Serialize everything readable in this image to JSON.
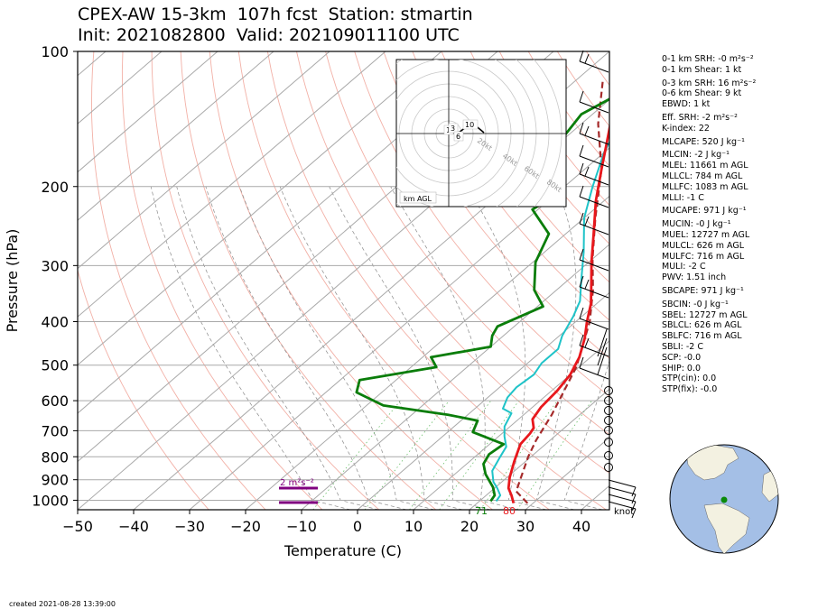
{
  "title_line1": "CPEX-AW 15-3km  107h fcst  Station: stmartin",
  "title_line2": "Init: 2021082800  Valid: 202109011100 UTC",
  "footer": "created 2021-08-28 13:39:00",
  "stats": [
    "0-1 km SRH: -0 m²s⁻²",
    "0-1 km Shear: 1 kt",
    "0-3 km SRH: 16 m²s⁻²",
    "0-6 km Shear: 9 kt",
    "EBWD: 1 kt",
    "Eff. SRH: -2 m²s⁻²",
    "K-index: 22",
    "MLCAPE: 520 J kg⁻¹",
    "MLCIN: -2 J kg⁻¹",
    "MLEL: 11661 m AGL",
    "MLLCL: 784 m AGL",
    "MLLFC: 1083 m AGL",
    "MLLI: -1 C",
    "MUCAPE: 971 J kg⁻¹",
    "MUCIN: -0 J kg⁻¹",
    "MUEL: 12727 m AGL",
    "MULCL: 626 m AGL",
    "MULFC: 716 m AGL",
    "MULI: -2 C",
    "PWV: 1.51 inch",
    "SBCAPE: 971 J kg⁻¹",
    "SBCIN: -0 J kg⁻¹",
    "SBEL: 12727 m AGL",
    "SBLCL: 626 m AGL",
    "SBLFC: 716 m AGL",
    "SBLI: -2 C",
    "SCP: -0.0",
    "SHIP: 0.0",
    "STP(cin): 0.0",
    "STP(fix): -0.0"
  ],
  "hodograph": {
    "box_label": "km AGL",
    "ring_labels": [
      "20kt",
      "40kt",
      "60kt",
      "80kt"
    ],
    "height_labels": [
      "1",
      "3",
      "6",
      "10"
    ]
  },
  "srh_label": "2 m²s⁻²",
  "surface_dewpoint_label": "71",
  "surface_temp_label": "80",
  "barb_units_label": "knot",
  "colors": {
    "temperature": "#e8171c",
    "dewpoint": "#0a7d0a",
    "wetbulb": "#1fc3c8",
    "parcel": "#a52a2a",
    "srh_bar": "#800080",
    "map_ocean": "#a4bfe6",
    "map_land": "#f3f1e1",
    "station_marker": "#0a8a0a"
  },
  "chart_data": {
    "type": "line",
    "title": "CPEX-AW 15-3km  107h fcst  Station: stmartin",
    "xlabel": "Temperature (C)",
    "ylabel": "Pressure (hPa)",
    "xlim": [
      -50,
      45
    ],
    "ylim": [
      1050,
      100
    ],
    "y_scale": "log",
    "x_ticks": [
      -50,
      -40,
      -30,
      -20,
      -10,
      0,
      10,
      20,
      30,
      40
    ],
    "y_ticks": [
      1000,
      900,
      800,
      700,
      600,
      500,
      400,
      300,
      200,
      100
    ],
    "grid": true,
    "series": [
      {
        "key": "temperature",
        "points": [
          [
            26.5,
            1015
          ],
          [
            24.5,
            975
          ],
          [
            22.5,
            940
          ],
          [
            20.5,
            890
          ],
          [
            18,
            820
          ],
          [
            15.5,
            750
          ],
          [
            15,
            710
          ],
          [
            14.5,
            690
          ],
          [
            12.5,
            660
          ],
          [
            11.5,
            620
          ],
          [
            11,
            570
          ],
          [
            10,
            525
          ],
          [
            8,
            480
          ],
          [
            5,
            435
          ],
          [
            2,
            400
          ],
          [
            -1,
            365
          ],
          [
            -5,
            330
          ],
          [
            -9.5,
            295
          ],
          [
            -15,
            255
          ],
          [
            -21.5,
            215
          ],
          [
            -27,
            183
          ],
          [
            -31.5,
            160
          ],
          [
            -36,
            140
          ],
          [
            -40.5,
            122
          ]
        ]
      },
      {
        "key": "dewpoint",
        "points": [
          [
            22,
            1005
          ],
          [
            21.5,
            975
          ],
          [
            19.5,
            935
          ],
          [
            15.5,
            875
          ],
          [
            13,
            830
          ],
          [
            12,
            790
          ],
          [
            12.5,
            750
          ],
          [
            4.5,
            705
          ],
          [
            3,
            665
          ],
          [
            -3.5,
            645
          ],
          [
            -17,
            615
          ],
          [
            -24.5,
            575
          ],
          [
            -26.5,
            540
          ],
          [
            -15.5,
            505
          ],
          [
            -18.5,
            480
          ],
          [
            -10,
            455
          ],
          [
            -12,
            430
          ],
          [
            -13,
            410
          ],
          [
            -9,
            370
          ],
          [
            -14,
            340
          ],
          [
            -19.5,
            295
          ],
          [
            -23,
            255
          ],
          [
            -31,
            225
          ],
          [
            -29.5,
            205
          ],
          [
            -35.5,
            180
          ],
          [
            -40.5,
            155
          ],
          [
            -42,
            138
          ],
          [
            -39,
            122
          ],
          [
            -36,
            108
          ],
          [
            -35,
            100
          ]
        ]
      },
      {
        "key": "wetbulb",
        "points": [
          [
            23,
            1005
          ],
          [
            22.5,
            975
          ],
          [
            20.5,
            940
          ],
          [
            18.5,
            910
          ],
          [
            16,
            860
          ],
          [
            14.5,
            800
          ],
          [
            13.5,
            760
          ],
          [
            11,
            720
          ],
          [
            9,
            685
          ],
          [
            7.5,
            640
          ],
          [
            5,
            625
          ],
          [
            3.5,
            590
          ],
          [
            3,
            560
          ],
          [
            3.5,
            525
          ],
          [
            2.5,
            495
          ],
          [
            2.5,
            460
          ],
          [
            0.5,
            430
          ],
          [
            -1.5,
            390
          ],
          [
            -3.5,
            360
          ],
          [
            -8,
            320
          ],
          [
            -13,
            280
          ],
          [
            -20,
            235
          ],
          [
            -25,
            200
          ],
          [
            -30,
            168
          ],
          [
            -34,
            140
          ],
          [
            -35.5,
            126
          ],
          [
            -31.5,
            108
          ],
          [
            -30.5,
            100
          ]
        ]
      },
      {
        "key": "parcel",
        "points": [
          [
            29,
            1015
          ],
          [
            24.5,
            955
          ],
          [
            19.5,
            800
          ],
          [
            17.5,
            735
          ],
          [
            15,
            645
          ],
          [
            9.5,
            505
          ],
          [
            2.5,
            400
          ],
          [
            -3.5,
            340
          ],
          [
            -10,
            290
          ],
          [
            -18,
            235
          ],
          [
            -27,
            183
          ],
          [
            -37,
            145
          ],
          [
            -45.5,
            115
          ]
        ]
      }
    ],
    "annotations": [
      "71",
      "80",
      "2 m²s⁻²"
    ]
  }
}
